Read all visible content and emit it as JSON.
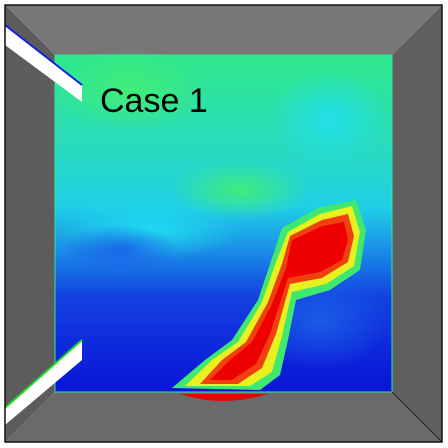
{
  "label": "Case 1"
}
